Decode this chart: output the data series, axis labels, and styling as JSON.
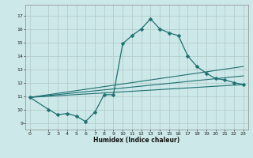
{
  "xlabel": "Humidex (Indice chaleur)",
  "bg_color": "#cde8e8",
  "grid_color": "#b0c8c8",
  "line_color": "#1e7070",
  "xlim": [
    -0.5,
    23.5
  ],
  "ylim": [
    8.5,
    17.8
  ],
  "xticks": [
    0,
    2,
    3,
    4,
    5,
    6,
    7,
    8,
    9,
    10,
    11,
    12,
    13,
    14,
    15,
    16,
    17,
    18,
    19,
    20,
    21,
    22,
    23
  ],
  "yticks": [
    9,
    10,
    11,
    12,
    13,
    14,
    15,
    16,
    17
  ],
  "main_series": {
    "x": [
      0,
      2,
      3,
      4,
      5,
      6,
      7,
      8,
      9,
      10,
      11,
      12,
      13,
      14,
      15,
      16,
      17,
      18,
      19,
      20,
      21,
      22,
      23
    ],
    "y": [
      10.9,
      10.0,
      9.6,
      9.7,
      9.5,
      9.1,
      9.8,
      11.1,
      11.1,
      14.9,
      15.5,
      16.0,
      16.75,
      16.0,
      15.7,
      15.5,
      14.0,
      13.2,
      12.7,
      12.3,
      12.2,
      12.0,
      11.85
    ]
  },
  "reg_lines": [
    {
      "x": [
        0,
        23
      ],
      "y": [
        10.9,
        11.85
      ]
    },
    {
      "x": [
        0,
        23
      ],
      "y": [
        10.9,
        12.5
      ]
    },
    {
      "x": [
        0,
        23
      ],
      "y": [
        10.9,
        13.2
      ]
    }
  ]
}
